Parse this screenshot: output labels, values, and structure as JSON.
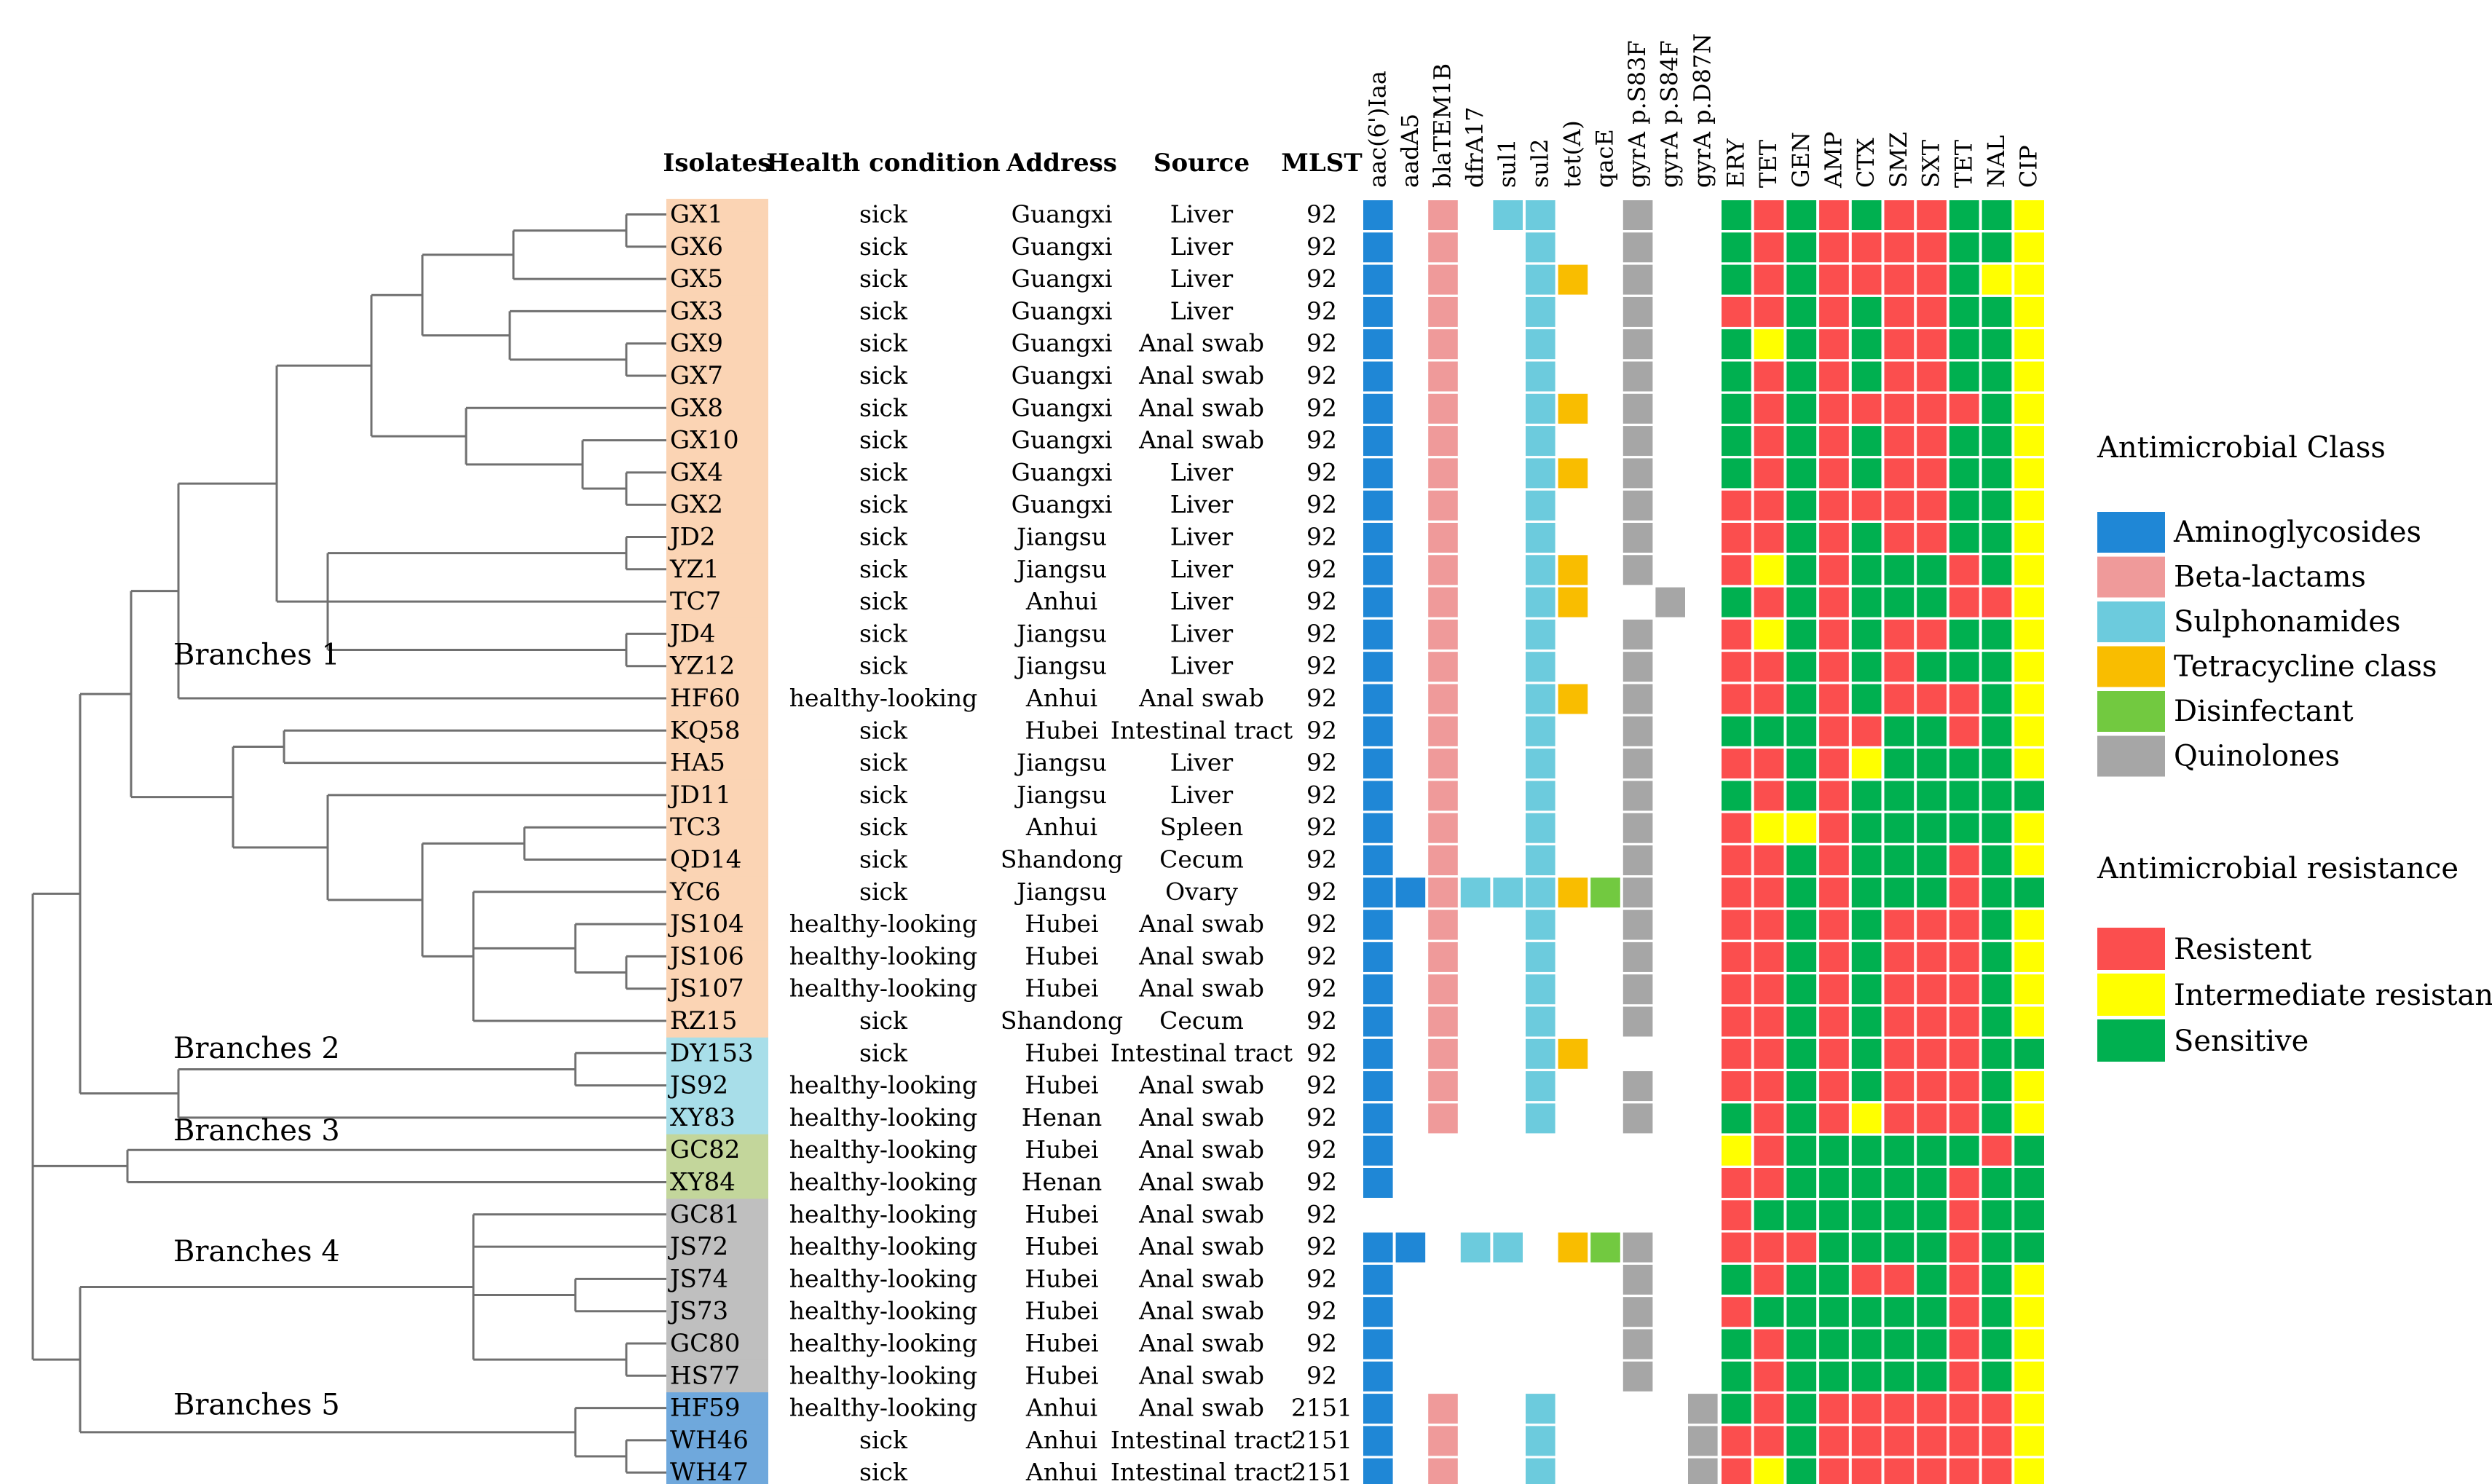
{
  "headers": {
    "isolates": "Isolates",
    "health": "Health condition",
    "address": "Address",
    "source": "Source",
    "mlst": "MLST"
  },
  "genes": [
    "aac(6')Iaa",
    "aadA5",
    "blaTEM1B",
    "dfrA17",
    "sul1",
    "sul2",
    "tet(A)",
    "qacE",
    "gyrA p.S83F",
    "gyrA p.S84F",
    "gyrA p.D87N"
  ],
  "gene_classes": [
    "amino",
    "amino",
    "beta",
    "sulfo",
    "sulfo",
    "sulfo",
    "tetra",
    "disinf",
    "quino",
    "quino",
    "quino"
  ],
  "drugs": [
    "ERY",
    "TET",
    "GEN",
    "AMP",
    "CTX",
    "SMZ",
    "SXT",
    "TET",
    "NAL",
    "CIP"
  ],
  "colors": {
    "amino": "#1f87d6",
    "beta": "#ef9a9a",
    "sulfo": "#6ccbdd",
    "tetra": "#f9bd00",
    "disinf": "#72c940",
    "quino": "#a6a6a6",
    "R": "#fb4e4e",
    "I": "#ffff00",
    "S": "#00b050",
    "branch1": "#fbd4b4",
    "branch2": "#a8dee9",
    "branch3": "#c3d69b",
    "branch4": "#bfbfbf",
    "branch5": "#6fa8dc"
  },
  "branch_labels": [
    {
      "text": "Branches  1",
      "row": 14.3
    },
    {
      "text": "Branches  2",
      "row": 26.5
    },
    {
      "text": "Branches  3",
      "row": 29.05
    },
    {
      "text": "Branches  4",
      "row": 32.8
    },
    {
      "text": "Branches  5",
      "row": 37.55
    }
  ],
  "legend": {
    "class_title": "Antimicrobial  Class",
    "classes": [
      {
        "label": "Aminoglycosides",
        "color": "#1f87d6"
      },
      {
        "label": "Beta-lactams",
        "color": "#ef9a9a"
      },
      {
        "label": "Sulphonamides",
        "color": "#6ccbdd"
      },
      {
        "label": "Tetracycline class",
        "color": "#f9bd00"
      },
      {
        "label": "Disinfectant",
        "color": "#72c940"
      },
      {
        "label": "Quinolones",
        "color": "#a6a6a6"
      }
    ],
    "res_title": "Antimicrobial  resistance",
    "resistance": [
      {
        "label": "Resistent",
        "color": "#fb4e4e"
      },
      {
        "label": "Intermediate resistance",
        "color": "#ffff00"
      },
      {
        "label": "Sensitive",
        "color": "#00b050"
      }
    ]
  },
  "isolates": [
    {
      "id": "GX1",
      "branch": 1,
      "health": "sick",
      "address": "Guangxi",
      "source": "Liver",
      "mlst": "92",
      "genes": "10101100100",
      "ast": "SRSRSRRSSI"
    },
    {
      "id": "GX6",
      "branch": 1,
      "health": "sick",
      "address": "Guangxi",
      "source": "Liver",
      "mlst": "92",
      "genes": "10100100100",
      "ast": "SRSRRRRSSI"
    },
    {
      "id": "GX5",
      "branch": 1,
      "health": "sick",
      "address": "Guangxi",
      "source": "Liver",
      "mlst": "92",
      "genes": "10100110100",
      "ast": "SRSRRRRSII"
    },
    {
      "id": "GX3",
      "branch": 1,
      "health": "sick",
      "address": "Guangxi",
      "source": "Liver",
      "mlst": "92",
      "genes": "10100100100",
      "ast": "RRSRSRRSSI"
    },
    {
      "id": "GX9",
      "branch": 1,
      "health": "sick",
      "address": "Guangxi",
      "source": "Anal swab",
      "mlst": "92",
      "genes": "10100100100",
      "ast": "SISRSRRSSI"
    },
    {
      "id": "GX7",
      "branch": 1,
      "health": "sick",
      "address": "Guangxi",
      "source": "Anal swab",
      "mlst": "92",
      "genes": "10100100100",
      "ast": "SRSRSRRSSI"
    },
    {
      "id": "GX8",
      "branch": 1,
      "health": "sick",
      "address": "Guangxi",
      "source": "Anal swab",
      "mlst": "92",
      "genes": "10100110100",
      "ast": "SRSRRRRRSI"
    },
    {
      "id": "GX10",
      "branch": 1,
      "health": "sick",
      "address": "Guangxi",
      "source": "Anal swab",
      "mlst": "92",
      "genes": "10100100100",
      "ast": "SRSRSRRSSI"
    },
    {
      "id": "GX4",
      "branch": 1,
      "health": "sick",
      "address": "Guangxi",
      "source": "Liver",
      "mlst": "92",
      "genes": "10100110100",
      "ast": "SRSRSRRSSI"
    },
    {
      "id": "GX2",
      "branch": 1,
      "health": "sick",
      "address": "Guangxi",
      "source": "Liver",
      "mlst": "92",
      "genes": "10100100100",
      "ast": "RRSRRRRSSI"
    },
    {
      "id": "JD2",
      "branch": 1,
      "health": "sick",
      "address": "Jiangsu",
      "source": "Liver",
      "mlst": "92",
      "genes": "10100100100",
      "ast": "RRSRSRRSSI"
    },
    {
      "id": "YZ1",
      "branch": 1,
      "health": "sick",
      "address": "Jiangsu",
      "source": "Liver",
      "mlst": "92",
      "genes": "10100110100",
      "ast": "RISRSSSRSI"
    },
    {
      "id": "TC7",
      "branch": 1,
      "health": "sick",
      "address": "Anhui",
      "source": "Liver",
      "mlst": "92",
      "genes": "10100110010",
      "ast": "SRSRSSSRRI"
    },
    {
      "id": "JD4",
      "branch": 1,
      "health": "sick",
      "address": "Jiangsu",
      "source": "Liver",
      "mlst": "92",
      "genes": "10100100100",
      "ast": "RISRSRRSSI"
    },
    {
      "id": "YZ12",
      "branch": 1,
      "health": "sick",
      "address": "Jiangsu",
      "source": "Liver",
      "mlst": "92",
      "genes": "10100100100",
      "ast": "RRSRSRSSSI"
    },
    {
      "id": "HF60",
      "branch": 1,
      "health": "healthy-looking",
      "address": "Anhui",
      "source": "Anal swab",
      "mlst": "92",
      "genes": "10100110100",
      "ast": "RRSRSRRRSI"
    },
    {
      "id": "KQ58",
      "branch": 1,
      "health": "sick",
      "address": "Hubei",
      "source": "Intestinal tract",
      "mlst": "92",
      "genes": "10100100100",
      "ast": "SSSRRSSRSI"
    },
    {
      "id": "HA5",
      "branch": 1,
      "health": "sick",
      "address": "Jiangsu",
      "source": "Liver",
      "mlst": "92",
      "genes": "10100100100",
      "ast": "RRSRISSSSI"
    },
    {
      "id": "JD11",
      "branch": 1,
      "health": "sick",
      "address": "Jiangsu",
      "source": "Liver",
      "mlst": "92",
      "genes": "10100100100",
      "ast": "SRSRSSSSSS"
    },
    {
      "id": "TC3",
      "branch": 1,
      "health": "sick",
      "address": "Anhui",
      "source": "Spleen",
      "mlst": "92",
      "genes": "10100100100",
      "ast": "RIIRSSSSSI"
    },
    {
      "id": "QD14",
      "branch": 1,
      "health": "sick",
      "address": "Shandong",
      "source": "Cecum",
      "mlst": "92",
      "genes": "10100100100",
      "ast": "RRSRSSSRSI"
    },
    {
      "id": "YC6",
      "branch": 1,
      "health": "sick",
      "address": "Jiangsu",
      "source": "Ovary",
      "mlst": "92",
      "genes": "11111111100",
      "ast": "RRSRSSSRSS"
    },
    {
      "id": "JS104",
      "branch": 1,
      "health": "healthy-looking",
      "address": "Hubei",
      "source": "Anal swab",
      "mlst": "92",
      "genes": "10100100100",
      "ast": "RRSRSRRRSI"
    },
    {
      "id": "JS106",
      "branch": 1,
      "health": "healthy-looking",
      "address": "Hubei",
      "source": "Anal swab",
      "mlst": "92",
      "genes": "10100100100",
      "ast": "RRSRSRRRSI"
    },
    {
      "id": "JS107",
      "branch": 1,
      "health": "healthy-looking",
      "address": "Hubei",
      "source": "Anal swab",
      "mlst": "92",
      "genes": "10100100100",
      "ast": "RRSRSRRRSI"
    },
    {
      "id": "RZ15",
      "branch": 1,
      "health": "sick",
      "address": "Shandong",
      "source": "Cecum",
      "mlst": "92",
      "genes": "10100100100",
      "ast": "RRSRSRRRSI"
    },
    {
      "id": "DY153",
      "branch": 2,
      "health": "sick",
      "address": "Hubei",
      "source": "Intestinal tract",
      "mlst": "92",
      "genes": "10100110000",
      "ast": "RRSRSRRRSS"
    },
    {
      "id": "JS92",
      "branch": 2,
      "health": "healthy-looking",
      "address": "Hubei",
      "source": "Anal swab",
      "mlst": "92",
      "genes": "10100100100",
      "ast": "RRSRSRRRSI"
    },
    {
      "id": "XY83",
      "branch": 2,
      "health": "healthy-looking",
      "address": "Henan",
      "source": "Anal swab",
      "mlst": "92",
      "genes": "10100100100",
      "ast": "SRSRIRRRSI"
    },
    {
      "id": "GC82",
      "branch": 3,
      "health": "healthy-looking",
      "address": "Hubei",
      "source": "Anal swab",
      "mlst": "92",
      "genes": "10000000000",
      "ast": "IRSSSSSSRS"
    },
    {
      "id": "XY84",
      "branch": 3,
      "health": "healthy-looking",
      "address": "Henan",
      "source": "Anal swab",
      "mlst": "92",
      "genes": "10000000000",
      "ast": "RRSSSSSRSS"
    },
    {
      "id": "GC81",
      "branch": 4,
      "health": "healthy-looking",
      "address": "Hubei",
      "source": "Anal swab",
      "mlst": "92",
      "genes": "00000000000",
      "ast": "RSSSSSSRSS"
    },
    {
      "id": "JS72",
      "branch": 4,
      "health": "healthy-looking",
      "address": "Hubei",
      "source": "Anal swab",
      "mlst": "92",
      "genes": "11011011100",
      "ast": "RRRSSSSRSS"
    },
    {
      "id": "JS74",
      "branch": 4,
      "health": "healthy-looking",
      "address": "Hubei",
      "source": "Anal swab",
      "mlst": "92",
      "genes": "10000000100",
      "ast": "SRSSRRSRSI"
    },
    {
      "id": "JS73",
      "branch": 4,
      "health": "healthy-looking",
      "address": "Hubei",
      "source": "Anal swab",
      "mlst": "92",
      "genes": "10000000100",
      "ast": "RSSSSSSRSI"
    },
    {
      "id": "GC80",
      "branch": 4,
      "health": "healthy-looking",
      "address": "Hubei",
      "source": "Anal swab",
      "mlst": "92",
      "genes": "10000000100",
      "ast": "SRSSSSSRSI"
    },
    {
      "id": "HS77",
      "branch": 4,
      "health": "healthy-looking",
      "address": "Hubei",
      "source": "Anal swab",
      "mlst": "92",
      "genes": "10000000100",
      "ast": "SRSSSSSRSI"
    },
    {
      "id": "HF59",
      "branch": 5,
      "health": "healthy-looking",
      "address": "Anhui",
      "source": "Anal swab",
      "mlst": "2151",
      "genes": "10100100001",
      "ast": "SRSRRRRRRI"
    },
    {
      "id": "WH46",
      "branch": 5,
      "health": "sick",
      "address": "Anhui",
      "source": "Intestinal tract",
      "mlst": "2151",
      "genes": "10100100001",
      "ast": "RRSRRRRRRI"
    },
    {
      "id": "WH47",
      "branch": 5,
      "health": "sick",
      "address": "Anhui",
      "source": "Intestinal tract",
      "mlst": "2151",
      "genes": "10100100001",
      "ast": "RISRRRRRRI"
    }
  ]
}
